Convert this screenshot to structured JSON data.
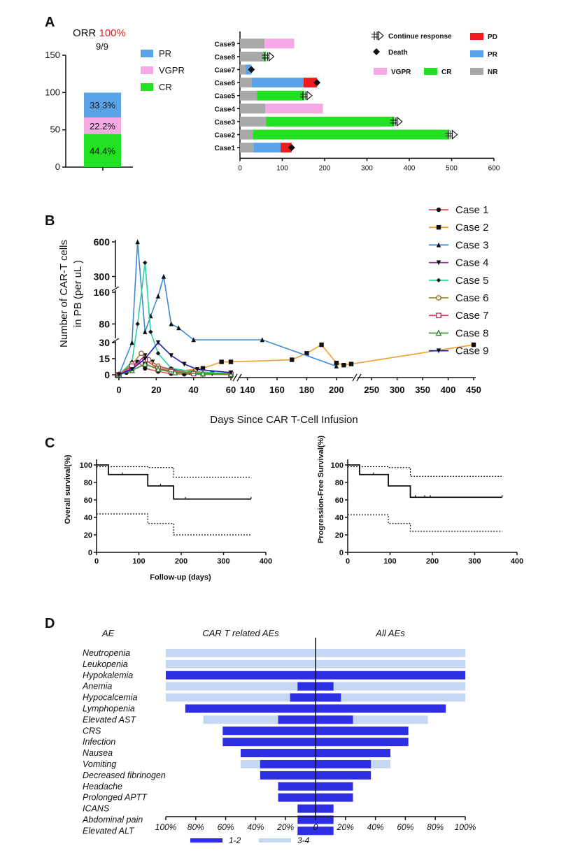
{
  "panel_labels": {
    "a": "A",
    "b": "B",
    "c": "C",
    "d": "D"
  },
  "colors": {
    "pr": "#5ba3e8",
    "vgpr": "#f4a9e4",
    "cr": "#22e022",
    "nr": "#a8a8a8",
    "pd": "#ee1c1c",
    "grade12": "#2e2ee3",
    "grade34": "#c6d7f4",
    "orr_highlight": "#e8201e"
  },
  "chart_data": [
    {
      "id": "A1",
      "type": "bar",
      "stacked": true,
      "title_prefix": "ORR ",
      "title_value": "100%",
      "subtitle": "9/9",
      "ylim": [
        0,
        150
      ],
      "yticks": [
        "0",
        "50",
        "100",
        "150"
      ],
      "segments": [
        {
          "name": "CR",
          "value": 44.4,
          "label": "44.4%",
          "color": "#22e022"
        },
        {
          "name": "VGPR",
          "value": 22.2,
          "label": "22.2%",
          "color": "#f4a9e4"
        },
        {
          "name": "PR",
          "value": 33.3,
          "label": "33.3%",
          "color": "#5ba3e8"
        }
      ],
      "legend": [
        {
          "name": "PR",
          "color": "#5ba3e8"
        },
        {
          "name": "VGPR",
          "color": "#f4a9e4"
        },
        {
          "name": "CR",
          "color": "#22e022"
        }
      ]
    },
    {
      "id": "A2",
      "type": "bar",
      "orientation": "horizontal",
      "stacked": true,
      "xlim": [
        0,
        600
      ],
      "xticks": [
        "0",
        "100",
        "200",
        "300",
        "400",
        "500",
        "600"
      ],
      "cases": [
        {
          "name": "Case9",
          "segments": [
            {
              "s": "NR",
              "from": 0,
              "to": 58
            },
            {
              "s": "VGPR",
              "from": 58,
              "to": 128
            }
          ],
          "marker": null
        },
        {
          "name": "Case8",
          "segments": [
            {
              "s": "NR",
              "from": 0,
              "to": 55
            },
            {
              "s": "CR",
              "from": 55,
              "to": 62
            }
          ],
          "marker": "continue",
          "mx": 62
        },
        {
          "name": "Case7",
          "segments": [
            {
              "s": "NR",
              "from": 0,
              "to": 13
            },
            {
              "s": "PR",
              "from": 13,
              "to": 27
            }
          ],
          "marker": "death",
          "mx": 27
        },
        {
          "name": "Case6",
          "segments": [
            {
              "s": "NR",
              "from": 0,
              "to": 28
            },
            {
              "s": "PR",
              "from": 28,
              "to": 150
            },
            {
              "s": "PD",
              "from": 150,
              "to": 182
            }
          ],
          "marker": "death",
          "mx": 182
        },
        {
          "name": "Case5",
          "segments": [
            {
              "s": "NR",
              "from": 0,
              "to": 40
            },
            {
              "s": "CR",
              "from": 40,
              "to": 152
            }
          ],
          "marker": "continue",
          "mx": 152
        },
        {
          "name": "Case4",
          "segments": [
            {
              "s": "NR",
              "from": 0,
              "to": 60
            },
            {
              "s": "VGPR",
              "from": 60,
              "to": 196
            }
          ],
          "marker": null
        },
        {
          "name": "Case3",
          "segments": [
            {
              "s": "NR",
              "from": 0,
              "to": 62
            },
            {
              "s": "CR",
              "from": 62,
              "to": 365
            }
          ],
          "marker": "continue",
          "mx": 365
        },
        {
          "name": "Case2",
          "segments": [
            {
              "s": "NR",
              "from": 0,
              "to": 30
            },
            {
              "s": "CR",
              "from": 30,
              "to": 495
            }
          ],
          "marker": "continue",
          "mx": 495
        },
        {
          "name": "Case1",
          "segments": [
            {
              "s": "NR",
              "from": 0,
              "to": 32
            },
            {
              "s": "PR",
              "from": 32,
              "to": 96
            },
            {
              "s": "PD",
              "from": 96,
              "to": 122
            }
          ],
          "marker": "death",
          "mx": 122
        }
      ],
      "legend": [
        {
          "name": "Continue response",
          "kind": "continue"
        },
        {
          "name": "Death",
          "kind": "death"
        },
        {
          "name": "PD",
          "kind": "box",
          "color": "#ee1c1c"
        },
        {
          "name": "PR",
          "kind": "box",
          "color": "#5ba3e8"
        },
        {
          "name": "VGPR",
          "kind": "box",
          "color": "#f4a9e4"
        },
        {
          "name": "CR",
          "kind": "box",
          "color": "#22e022"
        },
        {
          "name": "NR",
          "kind": "box",
          "color": "#a8a8a8"
        }
      ]
    },
    {
      "id": "B",
      "type": "line",
      "ylabel_line1": "Number of CAR-T cells",
      "ylabel_line2": "in PB (per uL )",
      "xlabel": "Days Since CAR T-Cell Infusion",
      "yticks": [
        "0",
        "15",
        "30",
        "80",
        "160",
        "300",
        "600"
      ],
      "xticks": [
        "0",
        "20",
        "40",
        "60",
        "140",
        "160",
        "180",
        "200",
        "250",
        "300",
        "350",
        "400",
        "450"
      ],
      "series": [
        {
          "name": "Case 1",
          "color": "#e05a5a",
          "marker": "circle",
          "points": [
            [
              0,
              0
            ],
            [
              4,
              2
            ],
            [
              7,
              8
            ],
            [
              10,
              12
            ],
            [
              14,
              6
            ],
            [
              21,
              3
            ],
            [
              28,
              1
            ],
            [
              35,
              0.5
            ],
            [
              45,
              0.3
            ],
            [
              60,
              0.2
            ]
          ]
        },
        {
          "name": "Case 2",
          "color": "#f0a030",
          "marker": "square",
          "points": [
            [
              0,
              0
            ],
            [
              7,
              4
            ],
            [
              14,
              10
            ],
            [
              21,
              6
            ],
            [
              30,
              3
            ],
            [
              45,
              6
            ],
            [
              55,
              12
            ],
            [
              60,
              12
            ],
            [
              170,
              14
            ],
            [
              180,
              20
            ],
            [
              190,
              28
            ],
            [
              200,
              11
            ],
            [
              205,
              9
            ],
            [
              210,
              10
            ],
            [
              450,
              28
            ]
          ]
        },
        {
          "name": "Case 3",
          "color": "#3a8ad8",
          "marker": "triangle",
          "points": [
            [
              0,
              0
            ],
            [
              7,
              30
            ],
            [
              10,
              600
            ],
            [
              14,
              60
            ],
            [
              17,
              100
            ],
            [
              21,
              150
            ],
            [
              24,
              300
            ],
            [
              28,
              80
            ],
            [
              32,
              70
            ],
            [
              40,
              35
            ],
            [
              150,
              35
            ],
            [
              200,
              8
            ]
          ]
        },
        {
          "name": "Case 4",
          "color": "#9a2ab0",
          "marker": "tri-down",
          "points": [
            [
              0,
              0
            ],
            [
              7,
              6
            ],
            [
              14,
              18
            ],
            [
              18,
              12
            ],
            [
              21,
              8
            ],
            [
              28,
              5
            ],
            [
              38,
              2
            ],
            [
              50,
              1
            ],
            [
              60,
              0.5
            ]
          ]
        },
        {
          "name": "Case 5",
          "color": "#2ad0a0",
          "marker": "diamond",
          "points": [
            [
              0,
              0
            ],
            [
              7,
              12
            ],
            [
              10,
              80
            ],
            [
              14,
              420
            ],
            [
              17,
              60
            ],
            [
              21,
              20
            ],
            [
              28,
              6
            ],
            [
              40,
              3
            ],
            [
              60,
              1
            ]
          ]
        },
        {
          "name": "Case 6",
          "color": "#b08a30",
          "marker": "circle-open",
          "points": [
            [
              0,
              0
            ],
            [
              7,
              10
            ],
            [
              12,
              20
            ],
            [
              16,
              14
            ],
            [
              21,
              8
            ],
            [
              28,
              4
            ],
            [
              40,
              2
            ],
            [
              60,
              1
            ]
          ]
        },
        {
          "name": "Case 7",
          "color": "#d04070",
          "marker": "square-open",
          "points": [
            [
              0,
              0
            ],
            [
              7,
              8
            ],
            [
              14,
              14
            ],
            [
              21,
              6
            ],
            [
              28,
              3
            ],
            [
              40,
              1
            ],
            [
              60,
              0.5
            ]
          ]
        },
        {
          "name": "Case 8",
          "color": "#3aa03a",
          "marker": "triangle-open",
          "points": [
            [
              0,
              0
            ],
            [
              7,
              4
            ],
            [
              14,
              10
            ],
            [
              21,
              5
            ],
            [
              30,
              2
            ],
            [
              45,
              1
            ],
            [
              60,
              0.5
            ]
          ]
        },
        {
          "name": "Case 9",
          "color": "#1e1ec0",
          "marker": "tri-down",
          "points": [
            [
              0,
              0
            ],
            [
              7,
              5
            ],
            [
              14,
              15
            ],
            [
              21,
              30
            ],
            [
              28,
              18
            ],
            [
              35,
              10
            ],
            [
              42,
              5
            ],
            [
              60,
              2
            ]
          ]
        }
      ]
    },
    {
      "id": "C1",
      "type": "line",
      "ylabel": "Overall survival(%)",
      "xlabel": "Follow-up (days)",
      "xlim": [
        0,
        400
      ],
      "ylim": [
        0,
        100
      ],
      "xticks": [
        "0",
        "100",
        "200",
        "300",
        "400"
      ],
      "yticks": [
        "0",
        "20",
        "40",
        "60",
        "80",
        "100"
      ],
      "km": [
        [
          0,
          100
        ],
        [
          28,
          100
        ],
        [
          28,
          89
        ],
        [
          121,
          89
        ],
        [
          121,
          76
        ],
        [
          182,
          76
        ],
        [
          182,
          61
        ],
        [
          365,
          61
        ]
      ],
      "upper": [
        [
          0,
          98
        ],
        [
          121,
          98
        ],
        [
          121,
          97
        ],
        [
          182,
          97
        ],
        [
          182,
          86
        ],
        [
          365,
          86
        ]
      ],
      "lower": [
        [
          0,
          44
        ],
        [
          121,
          44
        ],
        [
          121,
          33
        ],
        [
          182,
          33
        ],
        [
          182,
          20
        ],
        [
          365,
          20
        ]
      ],
      "censor": [
        [
          61,
          89
        ],
        [
          151,
          76
        ],
        [
          210,
          61
        ],
        [
          365,
          61
        ]
      ]
    },
    {
      "id": "C2",
      "type": "line",
      "ylabel": "Progression-Free Survival(%)",
      "xlim": [
        0,
        400
      ],
      "ylim": [
        0,
        100
      ],
      "xticks": [
        "0",
        "100",
        "200",
        "300",
        "400"
      ],
      "yticks": [
        "0",
        "20",
        "40",
        "60",
        "80",
        "100"
      ],
      "km": [
        [
          0,
          100
        ],
        [
          28,
          100
        ],
        [
          28,
          89
        ],
        [
          96,
          89
        ],
        [
          96,
          76
        ],
        [
          148,
          76
        ],
        [
          148,
          63
        ],
        [
          365,
          63
        ]
      ],
      "upper": [
        [
          0,
          98
        ],
        [
          96,
          98
        ],
        [
          96,
          97
        ],
        [
          148,
          97
        ],
        [
          148,
          87
        ],
        [
          365,
          87
        ]
      ],
      "lower": [
        [
          0,
          43
        ],
        [
          96,
          43
        ],
        [
          96,
          33
        ],
        [
          148,
          33
        ],
        [
          148,
          24
        ],
        [
          365,
          24
        ]
      ],
      "censor": [
        [
          61,
          89
        ],
        [
          160,
          63
        ],
        [
          182,
          63
        ],
        [
          195,
          63
        ],
        [
          365,
          63
        ]
      ]
    },
    {
      "id": "D",
      "type": "bar",
      "orientation": "horizontal",
      "header_ae": "AE",
      "header_left": "CAR T  related AEs",
      "header_right": "All AEs",
      "xticks": [
        "100%",
        "80%",
        "60%",
        "40%",
        "20%",
        "0",
        "20%",
        "40%",
        "60%",
        "80%",
        "100%"
      ],
      "legend_12": "1-2",
      "legend_34": "3-4",
      "rows": [
        {
          "name": "Neutropenia",
          "l12": 0,
          "l34": 100,
          "r12": 0,
          "r34": 100
        },
        {
          "name": "Leukopenia",
          "l12": 0,
          "l34": 100,
          "r12": 0,
          "r34": 100
        },
        {
          "name": "Hypokalemia",
          "l12": 100,
          "l34": 0,
          "r12": 100,
          "r34": 0
        },
        {
          "name": "Anemia",
          "l12": 12,
          "l34": 100,
          "r12": 12,
          "r34": 100
        },
        {
          "name": "Hypocalcemia",
          "l12": 17,
          "l34": 100,
          "r12": 17,
          "r34": 100
        },
        {
          "name": "Lymphopenia",
          "l12": 87,
          "l34": 0,
          "r12": 87,
          "r34": 0
        },
        {
          "name": "Elevated AST",
          "l12": 25,
          "l34": 75,
          "r12": 25,
          "r34": 75
        },
        {
          "name": "CRS",
          "l12": 62,
          "l34": 0,
          "r12": 62,
          "r34": 0
        },
        {
          "name": "Infection",
          "l12": 62,
          "l34": 0,
          "r12": 62,
          "r34": 0
        },
        {
          "name": "Nausea",
          "l12": 50,
          "l34": 0,
          "r12": 50,
          "r34": 0
        },
        {
          "name": "Vomiting",
          "l12": 37,
          "l34": 50,
          "r12": 37,
          "r34": 50
        },
        {
          "name": "Decreased fibrinogen",
          "l12": 37,
          "l34": 0,
          "r12": 37,
          "r34": 0
        },
        {
          "name": "Headache",
          "l12": 25,
          "l34": 0,
          "r12": 25,
          "r34": 0
        },
        {
          "name": "Prolonged APTT",
          "l12": 25,
          "l34": 0,
          "r12": 25,
          "r34": 0
        },
        {
          "name": "ICANS",
          "l12": 12,
          "l34": 0,
          "r12": 12,
          "r34": 0
        },
        {
          "name": "Abdominal pain",
          "l12": 12,
          "l34": 0,
          "r12": 12,
          "r34": 0
        },
        {
          "name": "Elevated ALT",
          "l12": 12,
          "l34": 0,
          "r12": 12,
          "r34": 0
        }
      ]
    }
  ]
}
